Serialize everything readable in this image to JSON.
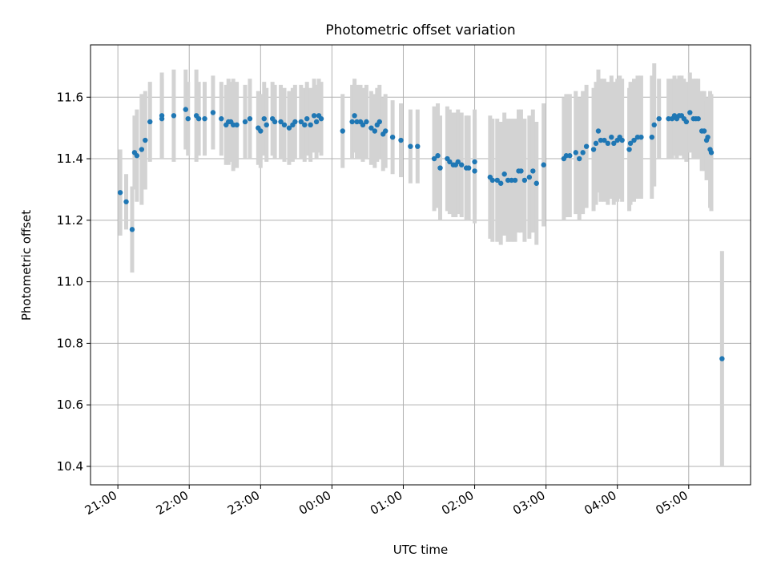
{
  "chart_data": {
    "type": "scatter",
    "title": "Photometric offset variation",
    "xlabel": "UTC time",
    "ylabel": "Photometric offset",
    "x_unit": "UTC clock time (times after 24:00 fall on the next day)",
    "xlim": [
      "20:37",
      "05:52"
    ],
    "ylim": [
      10.34,
      11.77
    ],
    "x_ticks": [
      "21:00",
      "22:00",
      "23:00",
      "00:00",
      "01:00",
      "02:00",
      "03:00",
      "04:00",
      "05:00"
    ],
    "y_ticks": [
      10.4,
      10.6,
      10.8,
      11.0,
      11.2,
      11.4,
      11.6
    ],
    "y_tick_labels": [
      "10.4",
      "10.6",
      "10.8",
      "11.0",
      "11.2",
      "11.4",
      "11.6"
    ],
    "grid": true,
    "errorbar_color": "#d3d3d3",
    "point_color": "#1f77b4",
    "series": [
      {
        "points": [
          [
            "21:02",
            11.29,
            0.14
          ],
          [
            "21:07",
            11.26,
            0.09
          ],
          [
            "21:12",
            11.17,
            0.14
          ],
          [
            "21:14",
            11.42,
            0.12
          ],
          [
            "21:16",
            11.41,
            0.15
          ],
          [
            "21:20",
            11.43,
            0.18
          ],
          [
            "21:23",
            11.46,
            0.16
          ],
          [
            "21:27",
            11.52,
            0.13
          ],
          [
            "21:37",
            11.54,
            0.14
          ],
          [
            "21:37",
            11.53,
            0.13
          ],
          [
            "21:47",
            11.54,
            0.15
          ],
          [
            "21:57",
            11.56,
            0.13
          ],
          [
            "21:59",
            11.53,
            0.12
          ],
          [
            "22:06",
            11.54,
            0.15
          ],
          [
            "22:08",
            11.53,
            0.12
          ],
          [
            "22:13",
            11.53,
            0.12
          ],
          [
            "22:20",
            11.55,
            0.12
          ],
          [
            "22:27",
            11.53,
            0.12
          ],
          [
            "22:31",
            11.51,
            0.13
          ],
          [
            "22:33",
            11.52,
            0.14
          ],
          [
            "22:35",
            11.52,
            0.13
          ],
          [
            "22:37",
            11.51,
            0.15
          ],
          [
            "22:40",
            11.51,
            0.14
          ],
          [
            "22:47",
            11.52,
            0.12
          ],
          [
            "22:51",
            11.53,
            0.13
          ],
          [
            "22:58",
            11.5,
            0.12
          ],
          [
            "23:00",
            11.49,
            0.12
          ],
          [
            "23:03",
            11.53,
            0.12
          ],
          [
            "23:05",
            11.51,
            0.12
          ],
          [
            "23:10",
            11.53,
            0.12
          ],
          [
            "23:12",
            11.52,
            0.12
          ],
          [
            "23:17",
            11.52,
            0.12
          ],
          [
            "23:20",
            11.51,
            0.12
          ],
          [
            "23:24",
            11.5,
            0.12
          ],
          [
            "23:27",
            11.51,
            0.12
          ],
          [
            "23:29",
            11.52,
            0.12
          ],
          [
            "23:34",
            11.52,
            0.12
          ],
          [
            "23:37",
            11.51,
            0.12
          ],
          [
            "23:39",
            11.53,
            0.12
          ],
          [
            "23:42",
            11.51,
            0.12
          ],
          [
            "23:45",
            11.54,
            0.12
          ],
          [
            "23:47",
            11.52,
            0.12
          ],
          [
            "23:49",
            11.54,
            0.12
          ],
          [
            "23:51",
            11.53,
            0.12
          ],
          [
            "00:09",
            11.49,
            0.12
          ],
          [
            "00:17",
            11.52,
            0.12
          ],
          [
            "00:19",
            11.54,
            0.12
          ],
          [
            "00:21",
            11.52,
            0.12
          ],
          [
            "00:24",
            11.52,
            0.12
          ],
          [
            "00:26",
            11.51,
            0.12
          ],
          [
            "00:29",
            11.52,
            0.12
          ],
          [
            "00:33",
            11.5,
            0.12
          ],
          [
            "00:36",
            11.49,
            0.12
          ],
          [
            "00:38",
            11.51,
            0.12
          ],
          [
            "00:40",
            11.52,
            0.12
          ],
          [
            "00:43",
            11.48,
            0.12
          ],
          [
            "00:45",
            11.49,
            0.12
          ],
          [
            "00:51",
            11.47,
            0.12
          ],
          [
            "00:58",
            11.46,
            0.12
          ],
          [
            "01:06",
            11.44,
            0.12
          ],
          [
            "01:12",
            11.44,
            0.12
          ],
          [
            "01:26",
            11.4,
            0.17
          ],
          [
            "01:29",
            11.41,
            0.17
          ],
          [
            "01:31",
            11.37,
            0.17
          ],
          [
            "01:37",
            11.4,
            0.17
          ],
          [
            "01:39",
            11.39,
            0.17
          ],
          [
            "01:42",
            11.38,
            0.17
          ],
          [
            "01:44",
            11.38,
            0.17
          ],
          [
            "01:46",
            11.39,
            0.17
          ],
          [
            "01:49",
            11.38,
            0.17
          ],
          [
            "01:53",
            11.37,
            0.17
          ],
          [
            "01:55",
            11.37,
            0.17
          ],
          [
            "02:00",
            11.39,
            0.17
          ],
          [
            "02:00",
            11.36,
            0.17
          ],
          [
            "02:13",
            11.34,
            0.2
          ],
          [
            "02:15",
            11.33,
            0.2
          ],
          [
            "02:19",
            11.33,
            0.2
          ],
          [
            "02:22",
            11.32,
            0.2
          ],
          [
            "02:25",
            11.35,
            0.2
          ],
          [
            "02:28",
            11.33,
            0.2
          ],
          [
            "02:31",
            11.33,
            0.2
          ],
          [
            "02:34",
            11.33,
            0.2
          ],
          [
            "02:37",
            11.36,
            0.2
          ],
          [
            "02:39",
            11.36,
            0.2
          ],
          [
            "02:42",
            11.33,
            0.2
          ],
          [
            "02:46",
            11.34,
            0.2
          ],
          [
            "02:49",
            11.36,
            0.2
          ],
          [
            "02:52",
            11.32,
            0.2
          ],
          [
            "02:58",
            11.38,
            0.2
          ],
          [
            "03:15",
            11.4,
            0.2
          ],
          [
            "03:17",
            11.41,
            0.2
          ],
          [
            "03:20",
            11.41,
            0.2
          ],
          [
            "03:25",
            11.42,
            0.2
          ],
          [
            "03:28",
            11.4,
            0.2
          ],
          [
            "03:31",
            11.42,
            0.2
          ],
          [
            "03:34",
            11.44,
            0.2
          ],
          [
            "03:40",
            11.43,
            0.2
          ],
          [
            "03:42",
            11.45,
            0.2
          ],
          [
            "03:44",
            11.49,
            0.2
          ],
          [
            "03:46",
            11.46,
            0.2
          ],
          [
            "03:49",
            11.46,
            0.2
          ],
          [
            "03:52",
            11.45,
            0.2
          ],
          [
            "03:55",
            11.47,
            0.2
          ],
          [
            "03:57",
            11.45,
            0.2
          ],
          [
            "04:00",
            11.46,
            0.2
          ],
          [
            "04:02",
            11.47,
            0.2
          ],
          [
            "04:04",
            11.46,
            0.2
          ],
          [
            "04:10",
            11.43,
            0.2
          ],
          [
            "04:11",
            11.45,
            0.2
          ],
          [
            "04:14",
            11.46,
            0.2
          ],
          [
            "04:17",
            11.47,
            0.2
          ],
          [
            "04:20",
            11.47,
            0.2
          ],
          [
            "04:29",
            11.47,
            0.2
          ],
          [
            "04:31",
            11.51,
            0.2
          ],
          [
            "04:35",
            11.53,
            0.13
          ],
          [
            "04:43",
            11.53,
            0.13
          ],
          [
            "04:46",
            11.53,
            0.13
          ],
          [
            "04:48",
            11.54,
            0.13
          ],
          [
            "04:50",
            11.53,
            0.13
          ],
          [
            "04:52",
            11.54,
            0.13
          ],
          [
            "04:54",
            11.54,
            0.13
          ],
          [
            "04:56",
            11.53,
            0.13
          ],
          [
            "04:58",
            11.52,
            0.13
          ],
          [
            "05:01",
            11.55,
            0.13
          ],
          [
            "05:04",
            11.53,
            0.13
          ],
          [
            "05:06",
            11.53,
            0.13
          ],
          [
            "05:08",
            11.53,
            0.13
          ],
          [
            "05:11",
            11.49,
            0.13
          ],
          [
            "05:13",
            11.49,
            0.13
          ],
          [
            "05:15",
            11.46,
            0.13
          ],
          [
            "05:16",
            11.47,
            0.13
          ],
          [
            "05:18",
            11.43,
            0.19
          ],
          [
            "05:19",
            11.42,
            0.19
          ],
          [
            "05:28",
            10.75,
            0.35
          ]
        ]
      }
    ]
  }
}
